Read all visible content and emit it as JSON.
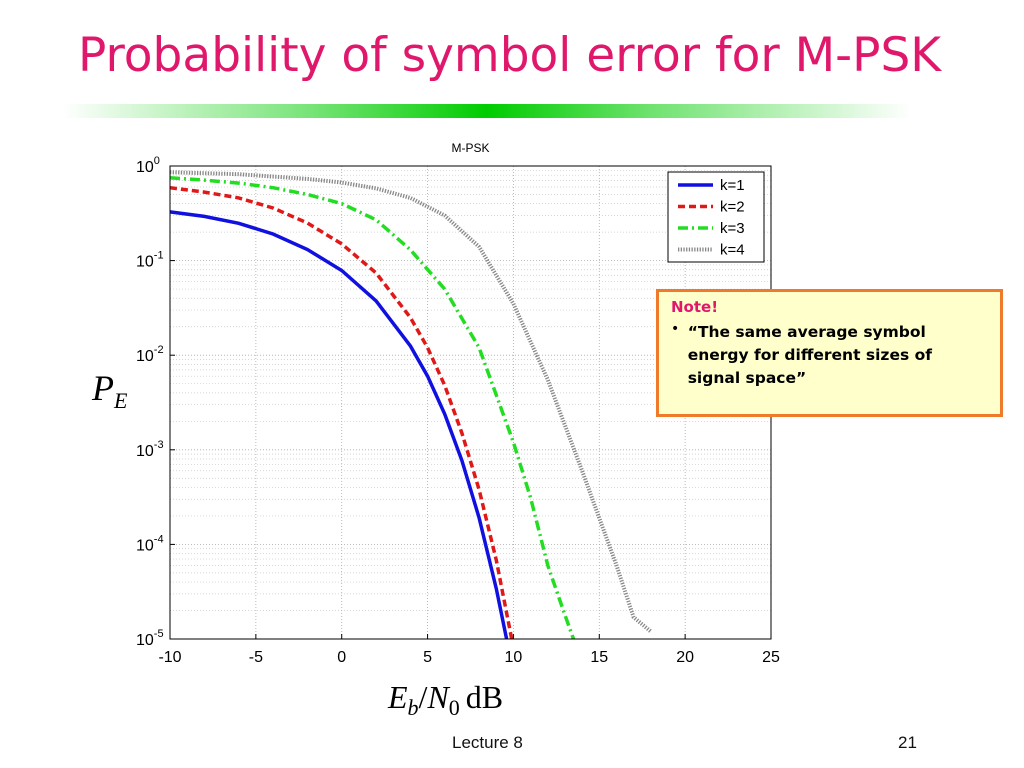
{
  "slide": {
    "title": "Probability of symbol error for M-PSK",
    "note": {
      "heading": "Note!",
      "bullet": "•",
      "text": "“The same average symbol energy for different sizes of signal space”"
    },
    "footer": {
      "center": "Lecture 8",
      "page": "21"
    },
    "colors": {
      "title": "#e0186c",
      "title_rule": "#00cc00",
      "note_border": "#ee7a2a",
      "note_fill": "#ffffcc"
    }
  },
  "chart_data": {
    "type": "line",
    "title": "M-PSK",
    "xlabel": {
      "italic": "E",
      "sub": "b",
      "slash": "/",
      "italic2": "N",
      "sub2": "0",
      "unit": "dB"
    },
    "ylabel": {
      "italic": "P",
      "sub": "E"
    },
    "xlim": [
      -10,
      25
    ],
    "ylim": [
      1e-05,
      1
    ],
    "yscale": "log",
    "grid": true,
    "legend_position": "top-right",
    "x_ticks": [
      -10,
      -5,
      0,
      5,
      10,
      15,
      20,
      25
    ],
    "y_ticks": [
      {
        "base": "10",
        "exp": "0"
      },
      {
        "base": "10",
        "exp": "-1"
      },
      {
        "base": "10",
        "exp": "-2"
      },
      {
        "base": "10",
        "exp": "-3"
      },
      {
        "base": "10",
        "exp": "-4"
      },
      {
        "base": "10",
        "exp": "-5"
      }
    ],
    "series": [
      {
        "name": "k=1",
        "color": "#1010e0",
        "style": "solid",
        "x": [
          -10,
          -8,
          -6,
          -4,
          -2,
          0,
          2,
          4,
          5,
          6,
          7,
          8,
          9,
          9.6
        ],
        "y": [
          0.327,
          0.293,
          0.248,
          0.191,
          0.131,
          0.0786,
          0.0375,
          0.0125,
          0.006,
          0.00239,
          0.00077,
          0.000191,
          3.4e-05,
          1e-05
        ]
      },
      {
        "name": "k=2",
        "color": "#e01818",
        "style": "dashed",
        "x": [
          -10,
          -8,
          -6,
          -4,
          -2,
          0,
          2,
          4,
          5,
          6,
          7,
          8,
          9,
          9.9
        ],
        "y": [
          0.59,
          0.53,
          0.46,
          0.36,
          0.25,
          0.15,
          0.074,
          0.025,
          0.012,
          0.0048,
          0.0015,
          0.00038,
          6.8e-05,
          1e-05
        ]
      },
      {
        "name": "k=3",
        "color": "#22dd22",
        "style": "dashdot",
        "x": [
          -10,
          -8,
          -6,
          -4,
          -2,
          0,
          2,
          4,
          6,
          8,
          10,
          11,
          12,
          13,
          13.5
        ],
        "y": [
          0.75,
          0.71,
          0.66,
          0.59,
          0.5,
          0.4,
          0.27,
          0.13,
          0.05,
          0.012,
          0.0012,
          0.00031,
          6e-05,
          1.8e-05,
          1e-05
        ]
      },
      {
        "name": "k=4",
        "color": "#888888",
        "style": "dotted",
        "x": [
          -10,
          -6,
          -2,
          0,
          2,
          4,
          6,
          8,
          10,
          12,
          14,
          16,
          17,
          18
        ],
        "y": [
          0.86,
          0.82,
          0.73,
          0.67,
          0.58,
          0.46,
          0.3,
          0.14,
          0.035,
          0.0055,
          0.0006,
          6e-05,
          1.7e-05,
          1.2e-05
        ]
      }
    ]
  }
}
